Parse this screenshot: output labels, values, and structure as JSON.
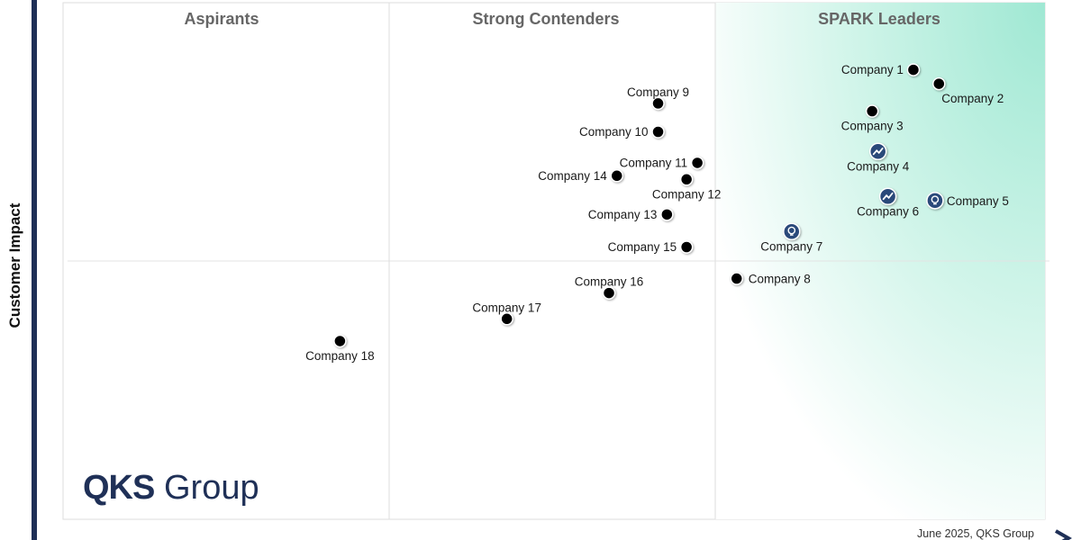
{
  "chart_data": {
    "type": "scatter",
    "title": "",
    "xlabel": "",
    "ylabel": "Customer Impact",
    "xlim": [
      0,
      100
    ],
    "ylim": [
      0,
      100
    ],
    "quadrants": [
      "Aspirants",
      "Strong Contenders",
      "SPARK Leaders"
    ],
    "points": [
      {
        "name": "Company 1",
        "x": 86.6,
        "y": 87.0,
        "marker": "dot",
        "label_side": "left"
      },
      {
        "name": "Company 2",
        "x": 89.2,
        "y": 84.3,
        "marker": "dot",
        "label_side": "below-right"
      },
      {
        "name": "Company 3",
        "x": 82.4,
        "y": 79.0,
        "marker": "dot",
        "label_side": "below"
      },
      {
        "name": "Company 4",
        "x": 83.0,
        "y": 71.2,
        "marker": "chart-icon",
        "label_side": "below"
      },
      {
        "name": "Company 5",
        "x": 88.8,
        "y": 61.7,
        "marker": "bulb-icon",
        "label_side": "right"
      },
      {
        "name": "Company 6",
        "x": 84.0,
        "y": 62.5,
        "marker": "chart-icon",
        "label_side": "below"
      },
      {
        "name": "Company 7",
        "x": 74.2,
        "y": 55.7,
        "marker": "bulb-icon",
        "label_side": "below"
      },
      {
        "name": "Company 8",
        "x": 68.6,
        "y": 46.6,
        "marker": "dot",
        "label_side": "right"
      },
      {
        "name": "Company 9",
        "x": 60.6,
        "y": 80.5,
        "marker": "dot",
        "label_side": "above"
      },
      {
        "name": "Company 10",
        "x": 60.6,
        "y": 75.0,
        "marker": "dot",
        "label_side": "left"
      },
      {
        "name": "Company 11",
        "x": 64.6,
        "y": 69.0,
        "marker": "dot",
        "label_side": "left"
      },
      {
        "name": "Company 12",
        "x": 63.5,
        "y": 65.8,
        "marker": "dot",
        "label_side": "below"
      },
      {
        "name": "Company 13",
        "x": 61.5,
        "y": 59.0,
        "marker": "dot",
        "label_side": "left"
      },
      {
        "name": "Company 14",
        "x": 56.4,
        "y": 66.5,
        "marker": "dot",
        "label_side": "left"
      },
      {
        "name": "Company 15",
        "x": 63.5,
        "y": 52.7,
        "marker": "dot",
        "label_side": "left"
      },
      {
        "name": "Company 16",
        "x": 55.6,
        "y": 43.8,
        "marker": "dot",
        "label_side": "above"
      },
      {
        "name": "Company 17",
        "x": 45.2,
        "y": 38.8,
        "marker": "dot",
        "label_side": "above"
      },
      {
        "name": "Company 18",
        "x": 28.2,
        "y": 34.5,
        "marker": "dot",
        "label_side": "below"
      }
    ],
    "legend": "none",
    "grid": false
  },
  "logo": {
    "qks": "QKS",
    "group": "Group"
  },
  "footer": {
    "note": "June 2025, QKS Group"
  },
  "colors": {
    "accent_teal": "#a8ead8",
    "navy": "#1f3057",
    "dot": "#000000",
    "icon_fill": "#2b4a7a"
  }
}
